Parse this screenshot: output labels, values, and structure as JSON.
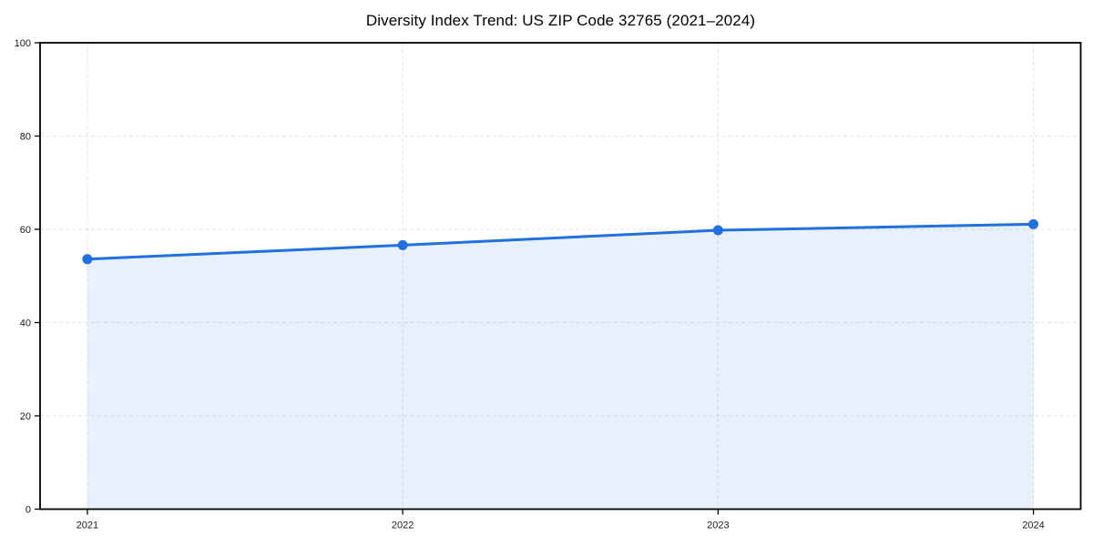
{
  "chart_data": {
    "type": "line",
    "title": "Diversity Index Trend: US ZIP Code 32765 (2021–2024)",
    "categories": [
      "2021",
      "2022",
      "2023",
      "2024"
    ],
    "series": [
      {
        "name": "Diversity Index",
        "values": [
          53.6,
          56.6,
          59.8,
          61.1
        ]
      }
    ],
    "xlabel": "",
    "ylabel": "",
    "ylim": [
      0,
      100
    ],
    "yticks": [
      0,
      20,
      40,
      60,
      80,
      100
    ],
    "grid": "dashed-both-axes",
    "legend": "none",
    "area_fill": true,
    "markers": true,
    "colors": {
      "line": "#2070e0",
      "fill": "rgba(32,112,224,0.10)",
      "grid": "#e3e3e3",
      "axis": "#000000",
      "tick_label": "#1a1a1a"
    }
  }
}
